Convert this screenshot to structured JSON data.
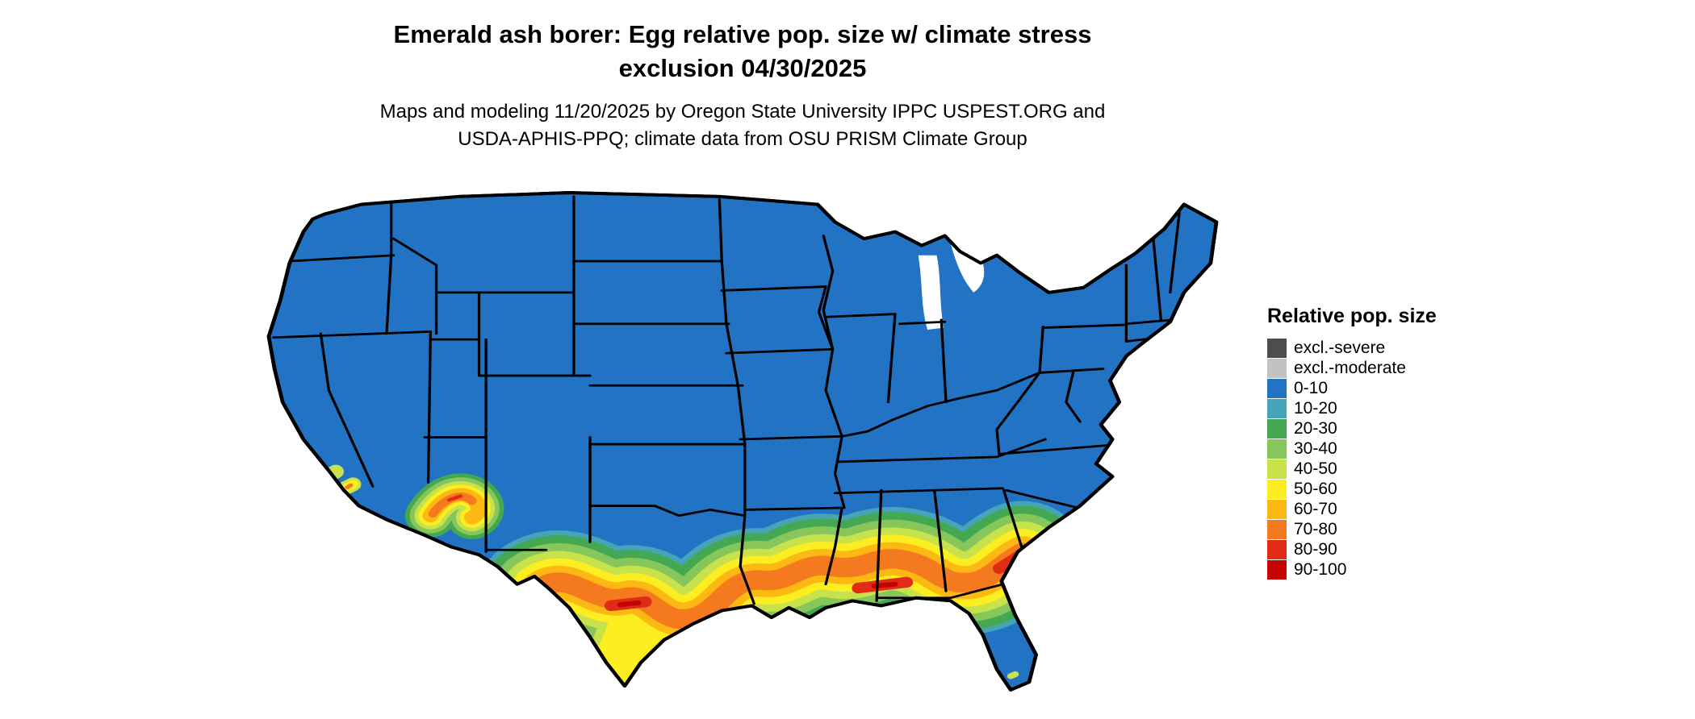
{
  "header": {
    "title_line1": "Emerald ash borer: Egg relative pop. size w/ climate stress",
    "title_line2": "exclusion 04/30/2025",
    "subtitle_line1": "Maps and modeling 11/20/2025 by Oregon State University IPPC USPEST.ORG and",
    "subtitle_line2": "USDA-APHIS-PPQ; climate data from OSU PRISM Climate Group"
  },
  "legend": {
    "title": "Relative pop. size",
    "items": [
      {
        "label": "excl.-severe",
        "color": "#4d4d4d"
      },
      {
        "label": "excl.-moderate",
        "color": "#c2c2c2"
      },
      {
        "label": "0-10",
        "color": "#2273c3"
      },
      {
        "label": "10-20",
        "color": "#46a4b9"
      },
      {
        "label": "20-30",
        "color": "#44a853"
      },
      {
        "label": "30-40",
        "color": "#86c65a"
      },
      {
        "label": "40-50",
        "color": "#c8e24c"
      },
      {
        "label": "50-60",
        "color": "#fdee22"
      },
      {
        "label": "60-70",
        "color": "#fdb913"
      },
      {
        "label": "70-80",
        "color": "#f4791f"
      },
      {
        "label": "80-90",
        "color": "#e02c17"
      },
      {
        "label": "90-100",
        "color": "#c40401"
      }
    ]
  },
  "map": {
    "name": "Continental United States map of emerald ash borer egg relative population size",
    "water_color": "#ffffff",
    "border_color": "#000000"
  }
}
